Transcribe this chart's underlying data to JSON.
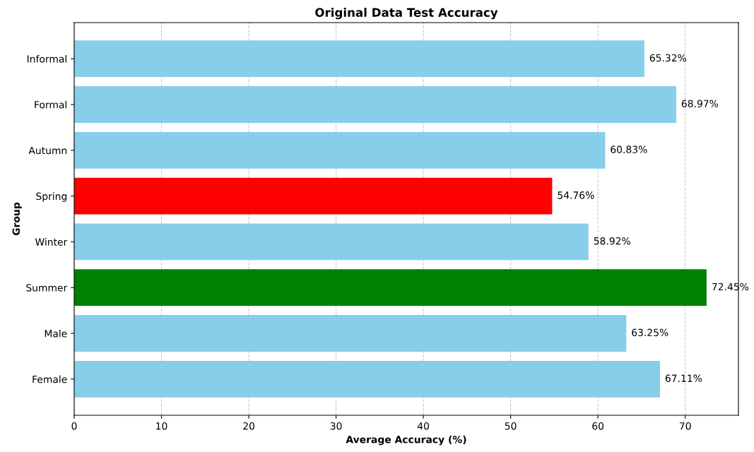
{
  "chart_data": {
    "type": "bar",
    "orientation": "horizontal",
    "title": "Original Data Test Accuracy",
    "xlabel": "Average Accuracy (%)",
    "ylabel": "Group",
    "categories": [
      "Informal",
      "Formal",
      "Autumn",
      "Spring",
      "Winter",
      "Summer",
      "Male",
      "Female"
    ],
    "values": [
      65.32,
      68.97,
      60.83,
      54.76,
      58.92,
      72.45,
      63.25,
      67.11
    ],
    "colors": [
      "#87ceeb",
      "#87ceeb",
      "#87ceeb",
      "#ff0000",
      "#87ceeb",
      "#008000",
      "#87ceeb",
      "#87ceeb"
    ],
    "value_labels": [
      "65.32%",
      "68.97%",
      "60.83%",
      "54.76%",
      "58.92%",
      "72.45%",
      "63.25%",
      "67.11%"
    ],
    "xlim": [
      0,
      76.1
    ],
    "xticks": [
      0,
      10,
      20,
      30,
      40,
      50,
      60,
      70
    ],
    "grid": "x"
  }
}
